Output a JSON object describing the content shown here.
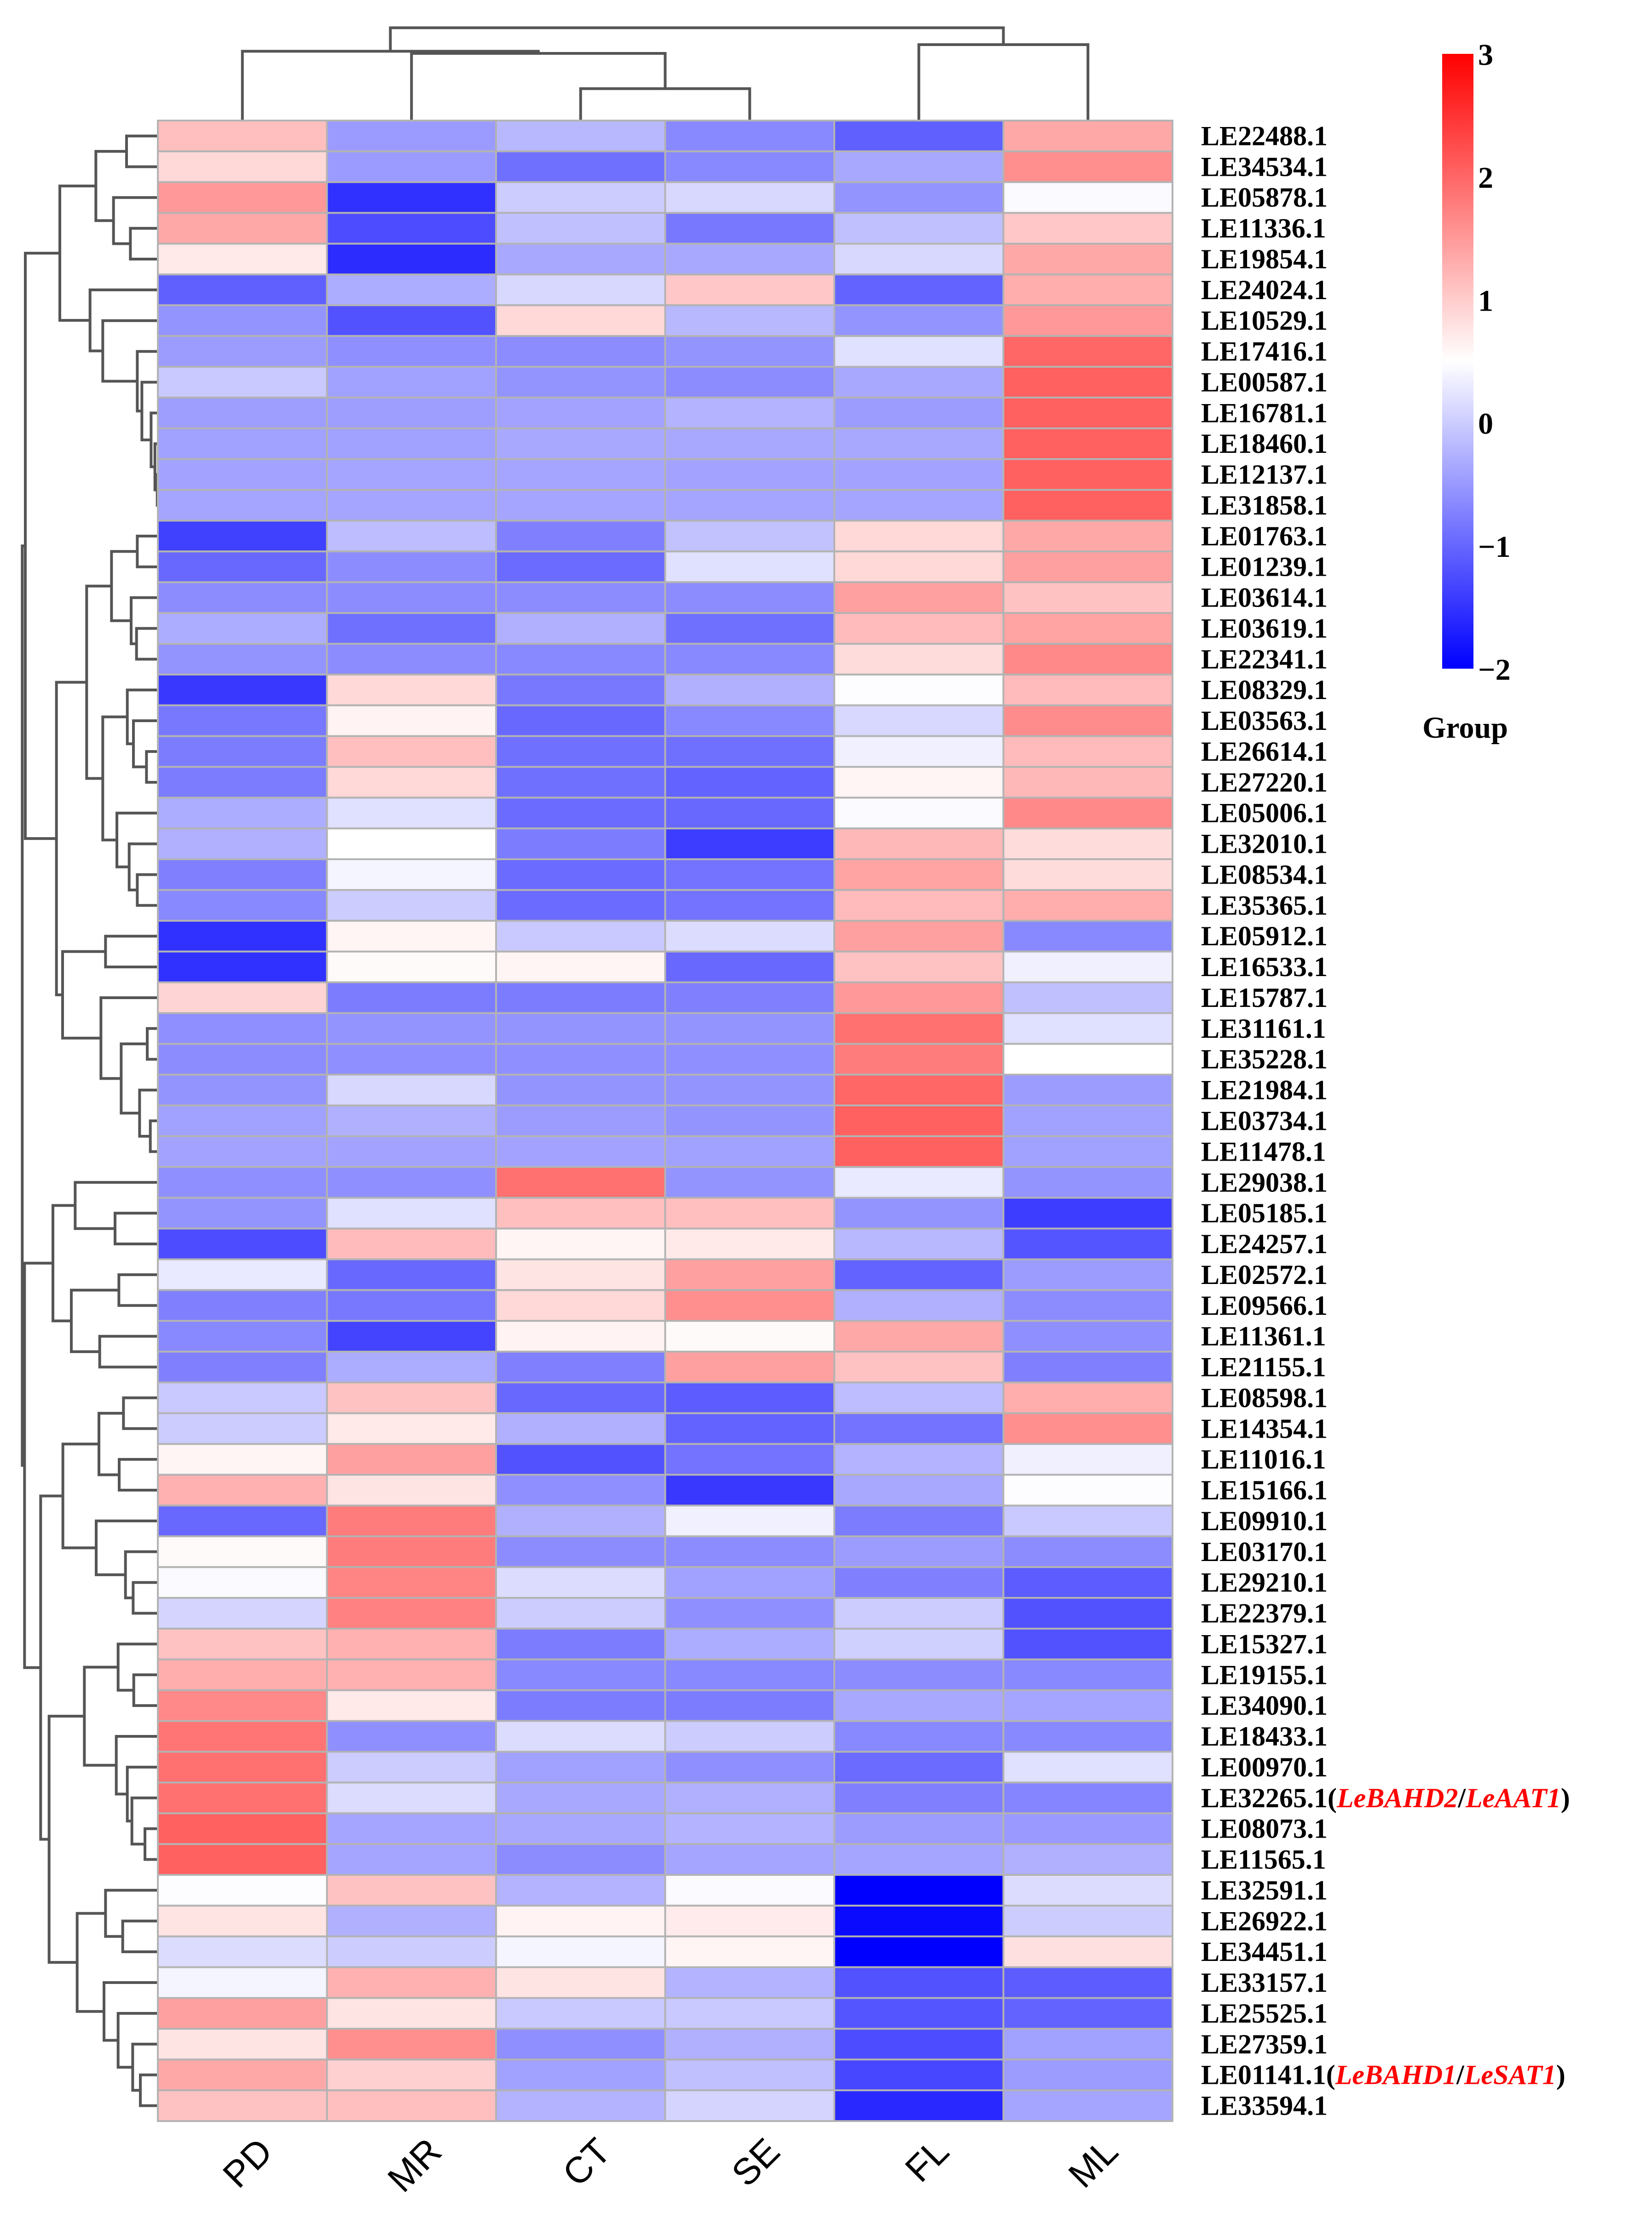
{
  "chart_data": {
    "type": "heatmap",
    "title": "",
    "columns": [
      "PD",
      "MR",
      "CT",
      "SE",
      "FL",
      "ML"
    ],
    "rows": [
      {
        "id": "LE22488.1"
      },
      {
        "id": "LE34534.1"
      },
      {
        "id": "LE05878.1"
      },
      {
        "id": "LE11336.1"
      },
      {
        "id": "LE19854.1"
      },
      {
        "id": "LE24024.1"
      },
      {
        "id": "LE10529.1"
      },
      {
        "id": "LE17416.1"
      },
      {
        "id": "LE00587.1"
      },
      {
        "id": "LE16781.1"
      },
      {
        "id": "LE18460.1"
      },
      {
        "id": "LE12137.1"
      },
      {
        "id": "LE31858.1"
      },
      {
        "id": "LE01763.1"
      },
      {
        "id": "LE01239.1"
      },
      {
        "id": "LE03614.1"
      },
      {
        "id": "LE03619.1"
      },
      {
        "id": "LE22341.1"
      },
      {
        "id": "LE08329.1"
      },
      {
        "id": "LE03563.1"
      },
      {
        "id": "LE26614.1"
      },
      {
        "id": "LE27220.1"
      },
      {
        "id": "LE05006.1"
      },
      {
        "id": "LE32010.1"
      },
      {
        "id": "LE08534.1"
      },
      {
        "id": "LE35365.1"
      },
      {
        "id": "LE05912.1"
      },
      {
        "id": "LE16533.1"
      },
      {
        "id": "LE15787.1"
      },
      {
        "id": "LE31161.1"
      },
      {
        "id": "LE35228.1"
      },
      {
        "id": "LE21984.1"
      },
      {
        "id": "LE03734.1"
      },
      {
        "id": "LE11478.1"
      },
      {
        "id": "LE29038.1"
      },
      {
        "id": "LE05185.1"
      },
      {
        "id": "LE24257.1"
      },
      {
        "id": "LE02572.1"
      },
      {
        "id": "LE09566.1"
      },
      {
        "id": "LE11361.1"
      },
      {
        "id": "LE21155.1"
      },
      {
        "id": "LE08598.1"
      },
      {
        "id": "LE14354.1"
      },
      {
        "id": "LE11016.1"
      },
      {
        "id": "LE15166.1"
      },
      {
        "id": "LE09910.1"
      },
      {
        "id": "LE03170.1"
      },
      {
        "id": "LE29210.1"
      },
      {
        "id": "LE22379.1"
      },
      {
        "id": "LE15327.1"
      },
      {
        "id": "LE19155.1"
      },
      {
        "id": "LE34090.1"
      },
      {
        "id": "LE18433.1"
      },
      {
        "id": "LE00970.1"
      },
      {
        "id": "LE32265.1",
        "genes": [
          "LeBAHD2",
          "LeAAT1"
        ]
      },
      {
        "id": "LE08073.1"
      },
      {
        "id": "LE11565.1"
      },
      {
        "id": "LE32591.1"
      },
      {
        "id": "LE26922.1"
      },
      {
        "id": "LE34451.1"
      },
      {
        "id": "LE33157.1"
      },
      {
        "id": "LE25525.1"
      },
      {
        "id": "LE27359.1"
      },
      {
        "id": "LE01141.1",
        "genes": [
          "LeBAHD1",
          "LeSAT1"
        ]
      },
      {
        "id": "LE33594.1"
      }
    ],
    "values": [
      [
        1.13,
        -0.48,
        -0.2,
        -0.67,
        -1.06,
        1.35
      ],
      [
        0.88,
        -0.48,
        -0.9,
        -0.67,
        -0.35,
        1.6
      ],
      [
        1.5,
        -1.53,
        0,
        0.12,
        -0.55,
        0.45
      ],
      [
        1.35,
        -1.25,
        -0.12,
        -0.82,
        -0.12,
        1.05
      ],
      [
        0.72,
        -1.57,
        -0.35,
        -0.35,
        0.12,
        1.35
      ],
      [
        -1.06,
        -0.3,
        0.12,
        1.05,
        -1.03,
        1.3
      ],
      [
        -0.55,
        -1.2,
        0.88,
        -0.2,
        -0.55,
        1.5
      ],
      [
        -0.47,
        -0.6,
        -0.63,
        -0.55,
        0.2,
        2.0
      ],
      [
        -0.03,
        -0.42,
        -0.55,
        -0.63,
        -0.35,
        2.06
      ],
      [
        -0.45,
        -0.45,
        -0.4,
        -0.25,
        -0.47,
        2.06
      ],
      [
        -0.42,
        -0.42,
        -0.35,
        -0.35,
        -0.35,
        2.06
      ],
      [
        -0.4,
        -0.38,
        -0.38,
        -0.4,
        -0.4,
        2.06
      ],
      [
        -0.38,
        -0.38,
        -0.38,
        -0.38,
        -0.38,
        2.06
      ],
      [
        -1.37,
        -0.15,
        -0.75,
        -0.1,
        0.88,
        1.35
      ],
      [
        -0.98,
        -0.63,
        -0.95,
        0.2,
        0.88,
        1.43
      ],
      [
        -0.63,
        -0.63,
        -0.63,
        -0.63,
        1.43,
        1.1
      ],
      [
        -0.3,
        -0.9,
        -0.27,
        -0.9,
        1.17,
        1.4
      ],
      [
        -0.55,
        -0.63,
        -0.67,
        -0.67,
        0.84,
        1.67
      ],
      [
        -1.45,
        0.88,
        -0.82,
        -0.27,
        0.48,
        1.17
      ],
      [
        -0.82,
        0.62,
        -0.98,
        -0.67,
        0.12,
        1.63
      ],
      [
        -0.78,
        1.13,
        -0.9,
        -0.9,
        0.35,
        1.17
      ],
      [
        -0.78,
        0.88,
        -0.9,
        -1.03,
        0.6,
        1.2
      ],
      [
        -0.3,
        0.2,
        -0.95,
        -0.98,
        0.45,
        1.67
      ],
      [
        -0.27,
        0.5,
        -0.78,
        -1.4,
        1.2,
        0.84
      ],
      [
        -0.75,
        0.4,
        -0.95,
        -0.87,
        1.4,
        0.84
      ],
      [
        -0.67,
        0,
        -0.95,
        -0.87,
        1.17,
        1.3
      ],
      [
        -1.53,
        0.6,
        -0.03,
        0.16,
        1.43,
        -0.67
      ],
      [
        -1.53,
        0.55,
        0.6,
        -0.98,
        1.1,
        0.35
      ],
      [
        0.92,
        -0.78,
        -0.78,
        -0.75,
        1.5,
        -0.12
      ],
      [
        -0.6,
        -0.55,
        -0.55,
        -0.55,
        1.9,
        0.2
      ],
      [
        -0.63,
        -0.6,
        -0.6,
        -0.6,
        1.78,
        0.5
      ],
      [
        -0.55,
        0.12,
        -0.55,
        -0.55,
        2.0,
        -0.47
      ],
      [
        -0.42,
        -0.27,
        -0.47,
        -0.55,
        2.06,
        -0.42
      ],
      [
        -0.4,
        -0.4,
        -0.4,
        -0.42,
        2.06,
        -0.42
      ],
      [
        -0.6,
        -0.6,
        1.9,
        -0.55,
        0.28,
        -0.55
      ],
      [
        -0.55,
        0.2,
        1.13,
        1.13,
        -0.55,
        -1.4
      ],
      [
        -1.25,
        1.17,
        0.6,
        0.72,
        -0.2,
        -1.17
      ],
      [
        0.28,
        -0.98,
        0.76,
        1.43,
        -1.03,
        -0.47
      ],
      [
        -0.75,
        -0.82,
        0.88,
        1.6,
        -0.27,
        -0.63
      ],
      [
        -0.67,
        -1.33,
        0.62,
        0.55,
        1.35,
        -0.6
      ],
      [
        -0.75,
        -0.3,
        -0.75,
        1.43,
        1.1,
        -0.75
      ],
      [
        -0.03,
        1.1,
        -0.98,
        -1.1,
        -0.15,
        1.3
      ],
      [
        0,
        0.72,
        -0.27,
        -1.03,
        -0.87,
        1.6
      ],
      [
        0.6,
        1.43,
        -1.2,
        -0.87,
        -0.25,
        0.35
      ],
      [
        1.27,
        0.76,
        -0.6,
        -1.45,
        -0.35,
        0.48
      ],
      [
        -0.98,
        1.78,
        -0.27,
        0.35,
        -0.78,
        -0.03
      ],
      [
        0.55,
        1.78,
        -0.63,
        -0.63,
        -0.47,
        -0.63
      ],
      [
        0.45,
        1.7,
        0.16,
        -0.42,
        -0.75,
        -1.1
      ],
      [
        0.08,
        1.74,
        0,
        -0.6,
        0,
        -1.2
      ],
      [
        1.1,
        1.27,
        -0.78,
        -0.3,
        0.04,
        -1.2
      ],
      [
        1.3,
        1.27,
        -0.67,
        -0.67,
        -0.63,
        -0.67
      ],
      [
        1.67,
        0.72,
        -0.78,
        -0.78,
        -0.35,
        -0.38
      ],
      [
        1.85,
        -0.6,
        0.16,
        0,
        -0.67,
        -0.67
      ],
      [
        1.9,
        0,
        -0.42,
        -0.6,
        -0.95,
        0.2
      ],
      [
        1.9,
        0.16,
        -0.35,
        -0.27,
        -0.75,
        -0.7
      ],
      [
        2.06,
        -0.38,
        -0.35,
        -0.25,
        -0.47,
        -0.5
      ],
      [
        2.06,
        -0.38,
        -0.63,
        -0.38,
        -0.38,
        -0.27
      ],
      [
        0.48,
        1.1,
        -0.25,
        0.45,
        -2,
        0.16
      ],
      [
        0.76,
        -0.27,
        0.62,
        0.7,
        -1.9,
        0
      ],
      [
        0.16,
        0,
        0.4,
        0.6,
        -2,
        0.8
      ],
      [
        0.4,
        1.27,
        0.76,
        -0.25,
        -1.2,
        -1.1
      ],
      [
        1.43,
        0.76,
        -0.03,
        -0.03,
        -1.17,
        -1.03
      ],
      [
        0.76,
        1.6,
        -0.6,
        -0.27,
        -1.25,
        -0.42
      ],
      [
        1.35,
        0.96,
        -0.42,
        -0.12,
        -1.3,
        -0.47
      ],
      [
        1.1,
        1.13,
        -0.25,
        0.08,
        -1.6,
        -0.38
      ]
    ],
    "color_scale": {
      "min": -2,
      "mid": 0.5,
      "max": 3,
      "low_color": "#0000ff",
      "mid_color": "#ffffff",
      "high_color": "#ff0000",
      "ticks": [
        3,
        2,
        1,
        0,
        -1,
        -2
      ],
      "tick_labels": [
        "3",
        "2",
        "1",
        "0",
        "−1",
        "−2"
      ],
      "title": "Group",
      "placement": "top-right"
    },
    "col_dendrogram": [
      [
        0,
        [
          1,
          [
            2,
            3,
            208
          ],
          438
        ],
        452
      ],
      [
        4,
        5,
        495
      ],
      605
    ],
    "row_dendrogram": [
      [
        [
          [
            [
              0,
              1,
              210
            ],
            [
              2,
              [
                3,
                4,
                185
              ],
              295
            ],
            410
          ],
          [
            5,
            [
              6,
              [
                7,
                [
                  8,
                  [
                    9,
                    [
                      10,
                      [
                        11,
                        12,
                        10
                      ],
                      25
                    ],
                    50
                  ],
                  110
                ],
                140
              ],
              365
            ],
            448
          ],
          645
        ],
        [
          [
            [
              [
                13,
                14,
                140
              ],
              [
                15,
                [
                  16,
                  17,
                  145
                ],
                180
              ],
              308
            ],
            [
              [
                18,
                [
                  19,
                  [
                    20,
                    21,
                    80
                  ],
                  165
                ],
                205
              ],
              [
                22,
                [
                  23,
                  [
                    24,
                    25,
                    140
                  ],
                  193
                ],
                273
              ],
              365
            ],
            470
          ],
          [
            [
              26,
              27,
              347
            ],
            [
              28,
              [
                [
                  29,
                  30,
                  75
                ],
                [
                  31,
                  [
                    32,
                    33,
                    55
                  ],
                  125
                ],
                245
              ],
              377
            ],
            627
          ],
          667
        ],
        870
      ],
      [
        [
          [
            34,
            [
              35,
              36,
              285
            ],
            545
          ],
          [
            [
              37,
              38,
              260
            ],
            [
              39,
              40,
              385
            ],
            570
          ],
          690
        ],
        [
          [
            [
              [
                41,
                42,
                230
              ],
              [
                43,
                44,
                258
              ],
              390
            ],
            [
              45,
              [
                46,
                [
                  47,
                  48,
                  167
                ],
                217
              ],
              408
            ],
            625
          ],
          [
            [
              [
                49,
                [
                  50,
                  51,
                  163
                ],
                265
              ],
              [
                52,
                [
                  53,
                  [
                    54,
                    [
                      55,
                      56,
                      90
                    ],
                    175
                  ],
                  205
                ],
                277
              ],
              485
            ],
            [
              [
                57,
                [
                  58,
                  59,
                  235
                ],
                347
              ],
              [
                60,
                [
                  61,
                  [
                    62,
                    [
                      63,
                      64,
                      120
                    ],
                    170
                  ],
                  265
                ],
                357
              ],
              532
            ],
            715
          ],
          770
        ],
        875
      ],
      890
    ],
    "annotation_color": "#ff0000",
    "grid_color": "#b3b3b3",
    "dendrogram_color": "#555555"
  }
}
